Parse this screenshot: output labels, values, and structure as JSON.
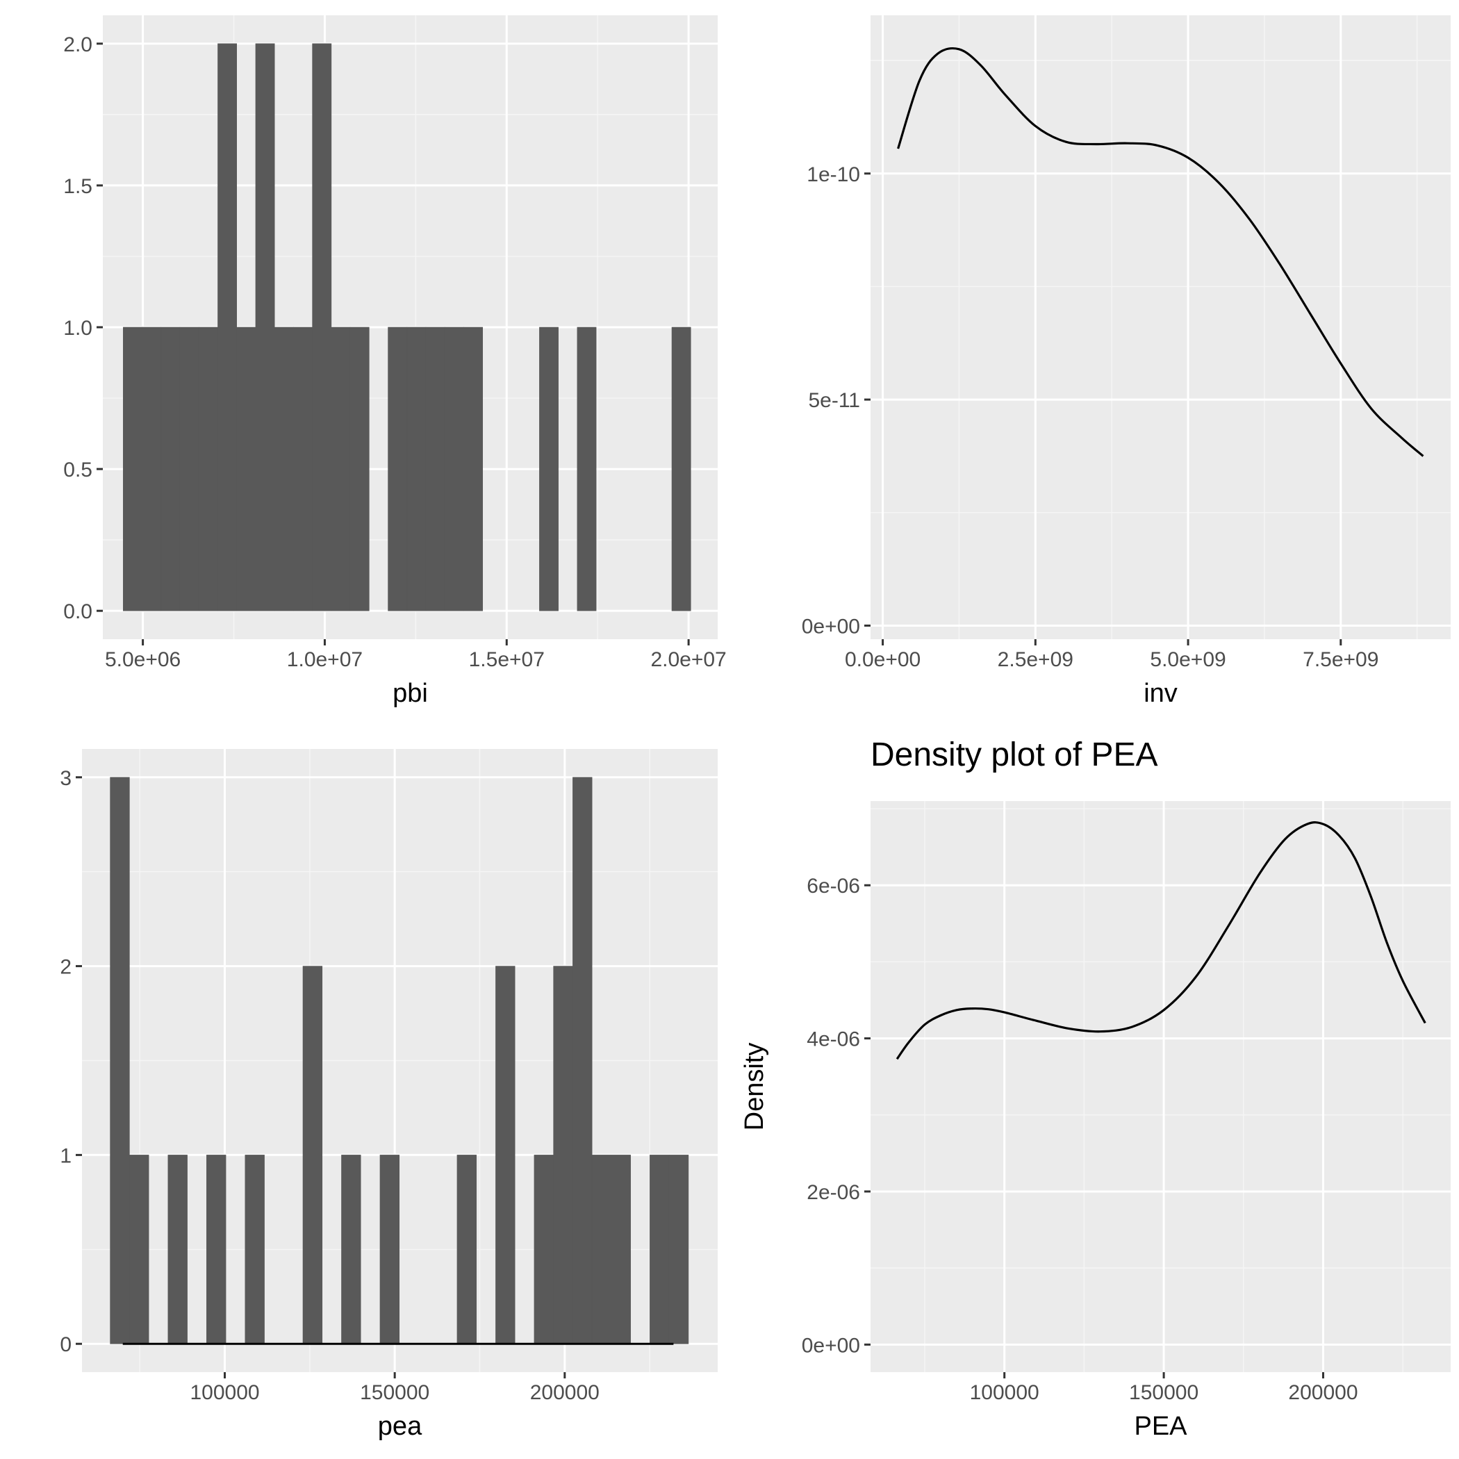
{
  "colors": {
    "panel_background": "#EBEBEB",
    "grid_major": "#FFFFFF",
    "grid_minor": "#F5F5F5",
    "bar_fill": "#595959",
    "line": "#000000",
    "tick_text": "#4D4D4D",
    "axis_title_text": "#000000"
  },
  "chart_data": [
    {
      "id": "pbi",
      "type": "bar",
      "subtype": "histogram",
      "title": "",
      "xlabel": "pbi",
      "ylabel": "",
      "xlim": [
        3900000,
        20800000
      ],
      "ylim": [
        -0.1,
        2.1
      ],
      "x_ticks": [
        5000000,
        10000000,
        15000000,
        20000000
      ],
      "x_tick_labels": [
        "5.0e+06",
        "1.0e+07",
        "1.5e+07",
        "2.0e+07"
      ],
      "y_ticks": [
        0,
        0.5,
        1,
        1.5,
        2
      ],
      "y_tick_labels": [
        "0.0",
        "0.5",
        "1.0",
        "1.5",
        "2.0"
      ],
      "grid": true,
      "bins": [
        {
          "x0": 4460000,
          "x1": 4980000,
          "count": 1
        },
        {
          "x0": 4980000,
          "x1": 5500000,
          "count": 1
        },
        {
          "x0": 5500000,
          "x1": 6020000,
          "count": 1
        },
        {
          "x0": 6020000,
          "x1": 6540000,
          "count": 1
        },
        {
          "x0": 6540000,
          "x1": 7060000,
          "count": 1
        },
        {
          "x0": 7060000,
          "x1": 7580000,
          "count": 2
        },
        {
          "x0": 7580000,
          "x1": 8100000,
          "count": 1
        },
        {
          "x0": 8100000,
          "x1": 8620000,
          "count": 2
        },
        {
          "x0": 8620000,
          "x1": 9140000,
          "count": 1
        },
        {
          "x0": 9140000,
          "x1": 9660000,
          "count": 1
        },
        {
          "x0": 9660000,
          "x1": 10180000,
          "count": 2
        },
        {
          "x0": 10180000,
          "x1": 10700000,
          "count": 1
        },
        {
          "x0": 10700000,
          "x1": 11220000,
          "count": 1
        },
        {
          "x0": 11740000,
          "x1": 12260000,
          "count": 1
        },
        {
          "x0": 12260000,
          "x1": 12780000,
          "count": 1
        },
        {
          "x0": 12780000,
          "x1": 13300000,
          "count": 1
        },
        {
          "x0": 13300000,
          "x1": 13820000,
          "count": 1
        },
        {
          "x0": 13820000,
          "x1": 14340000,
          "count": 1
        },
        {
          "x0": 15900000,
          "x1": 16420000,
          "count": 1
        },
        {
          "x0": 16940000,
          "x1": 17460000,
          "count": 1
        },
        {
          "x0": 19540000,
          "x1": 20060000,
          "count": 1
        }
      ]
    },
    {
      "id": "inv",
      "type": "line",
      "subtype": "density",
      "title": "",
      "xlabel": "inv",
      "ylabel": "",
      "xlim": [
        -200000000,
        9300000000
      ],
      "ylim": [
        -3e-12,
        1.35e-10
      ],
      "x_ticks": [
        0,
        2500000000,
        5000000000,
        7500000000
      ],
      "x_tick_labels": [
        "0.0e+00",
        "2.5e+09",
        "5.0e+09",
        "7.5e+09"
      ],
      "y_ticks": [
        0,
        5e-11,
        1e-10
      ],
      "y_tick_labels": [
        "0e+00",
        "5e-11",
        "1e-10"
      ],
      "grid": true,
      "series": [
        {
          "x": [
            250000000,
            600000000,
            900000000,
            1250000000,
            1600000000,
            2000000000,
            2500000000,
            3000000000,
            3500000000,
            4000000000,
            4500000000,
            5000000000,
            5500000000,
            6000000000,
            6500000000,
            7000000000,
            7500000000,
            8000000000,
            8500000000,
            8850000000
          ],
          "y": [
            1.055e-10,
            1.205e-10,
            1.265e-10,
            1.275e-10,
            1.24e-10,
            1.175e-10,
            1.105e-10,
            1.07e-10,
            1.065e-10,
            1.067e-10,
            1.062e-10,
            1.035e-10,
            9.8e-11,
            9e-11,
            8e-11,
            6.9e-11,
            5.8e-11,
            4.8e-11,
            4.15e-11,
            3.75e-11
          ]
        }
      ]
    },
    {
      "id": "pea",
      "type": "bar",
      "subtype": "histogram",
      "title": "",
      "xlabel": "pea",
      "ylabel": "",
      "xlim": [
        58000,
        245000
      ],
      "ylim": [
        -0.15,
        3.15
      ],
      "x_ticks": [
        100000,
        150000,
        200000
      ],
      "x_tick_labels": [
        "100000",
        "150000",
        "200000"
      ],
      "y_ticks": [
        0,
        1,
        2,
        3
      ],
      "y_tick_labels": [
        "0",
        "1",
        "2",
        "3"
      ],
      "grid": true,
      "bins": [
        {
          "x0": 66300,
          "x1": 71970,
          "count": 3
        },
        {
          "x0": 71970,
          "x1": 77640,
          "count": 1
        },
        {
          "x0": 83310,
          "x1": 88980,
          "count": 1
        },
        {
          "x0": 94650,
          "x1": 100320,
          "count": 1
        },
        {
          "x0": 105990,
          "x1": 111660,
          "count": 1
        },
        {
          "x0": 122990,
          "x1": 128660,
          "count": 2
        },
        {
          "x0": 134330,
          "x1": 140000,
          "count": 1
        },
        {
          "x0": 145670,
          "x1": 151340,
          "count": 1
        },
        {
          "x0": 168350,
          "x1": 174020,
          "count": 1
        },
        {
          "x0": 179690,
          "x1": 185360,
          "count": 2
        },
        {
          "x0": 191030,
          "x1": 196700,
          "count": 1
        },
        {
          "x0": 196700,
          "x1": 202370,
          "count": 2
        },
        {
          "x0": 202370,
          "x1": 208040,
          "count": 3
        },
        {
          "x0": 208040,
          "x1": 213710,
          "count": 1
        },
        {
          "x0": 213710,
          "x1": 219380,
          "count": 1
        },
        {
          "x0": 225050,
          "x1": 230720,
          "count": 1
        },
        {
          "x0": 230720,
          "x1": 236390,
          "count": 1
        }
      ],
      "baseline": {
        "x0": 70000,
        "x1": 232000,
        "y": 0
      }
    },
    {
      "id": "PEA",
      "type": "line",
      "subtype": "density",
      "title": "Density plot of PEA",
      "xlabel": "PEA",
      "ylabel": "Density",
      "xlim": [
        58000,
        240000
      ],
      "ylim": [
        -3.6e-07,
        7.1e-06
      ],
      "x_ticks": [
        100000,
        150000,
        200000
      ],
      "x_tick_labels": [
        "100000",
        "150000",
        "200000"
      ],
      "y_ticks": [
        0,
        2e-06,
        4e-06,
        6e-06
      ],
      "y_tick_labels": [
        "0e+00",
        "2e-06",
        "4e-06",
        "6e-06"
      ],
      "grid": true,
      "series": [
        {
          "x": [
            66300,
            70000,
            75000,
            80000,
            85000,
            90000,
            95000,
            100000,
            110000,
            120000,
            130000,
            140000,
            150000,
            160000,
            170000,
            180000,
            188000,
            195000,
            200000,
            205000,
            210000,
            215000,
            220000,
            225000,
            232000
          ],
          "y": [
            3.73e-06,
            3.95e-06,
            4.18e-06,
            4.3e-06,
            4.37e-06,
            4.39e-06,
            4.38e-06,
            4.34e-06,
            4.23e-06,
            4.13e-06,
            4.09e-06,
            4.15e-06,
            4.37e-06,
            4.8e-06,
            5.45e-06,
            6.15e-06,
            6.6e-06,
            6.8e-06,
            6.8e-06,
            6.65e-06,
            6.35e-06,
            5.85e-06,
            5.25e-06,
            4.75e-06,
            4.2e-06
          ]
        }
      ]
    }
  ]
}
